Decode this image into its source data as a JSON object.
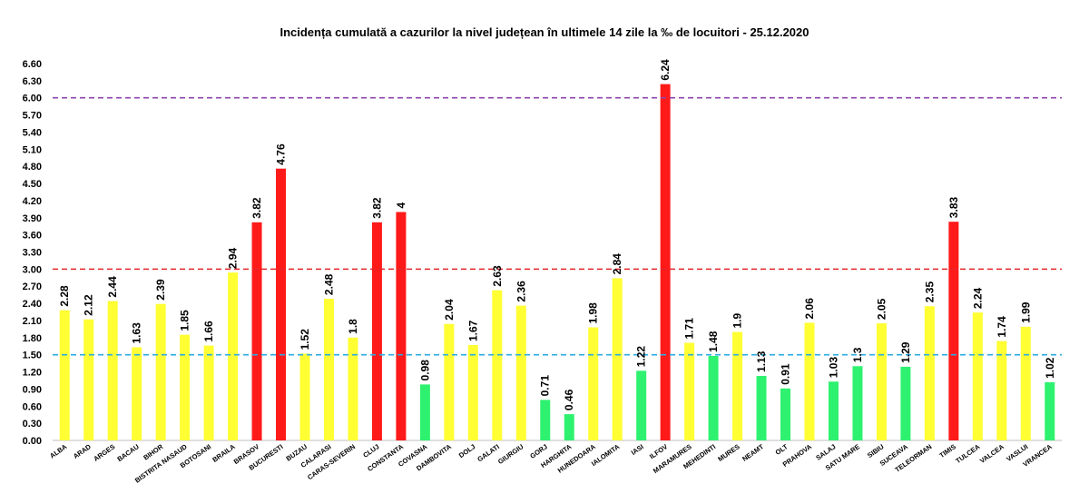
{
  "chart_data": {
    "type": "bar",
    "title": "Incidența cumulată a cazurilor la nivel județean în ultimele 14 zile la ‰ de locuitori - 25.12.2020",
    "xlabel": "",
    "ylabel": "",
    "ylim": [
      0,
      6.6
    ],
    "yticks": [
      "0.00",
      "0.30",
      "0.60",
      "0.90",
      "1.20",
      "1.50",
      "1.80",
      "2.10",
      "2.40",
      "2.70",
      "3.00",
      "3.30",
      "3.60",
      "3.90",
      "4.20",
      "4.50",
      "4.80",
      "5.10",
      "5.40",
      "5.70",
      "6.00",
      "6.30",
      "6.60"
    ],
    "grid": false,
    "legend": "none",
    "categories": [
      "ALBA",
      "ARAD",
      "ARGES",
      "BACAU",
      "BIHOR",
      "BISTRITA NASAUD",
      "BOTOSANI",
      "BRAILA",
      "BRASOV",
      "BUCURESTI",
      "BUZAU",
      "CALARASI",
      "CARAS-SEVERIN",
      "CLUJ",
      "CONSTANTA",
      "COVASNA",
      "DAMBOVITA",
      "DOLJ",
      "GALATI",
      "GIURGIU",
      "GORJ",
      "HARGHITA",
      "HUNEDOARA",
      "IALOMITA",
      "IASI",
      "ILFOV",
      "MARAMURES",
      "MEHEDINTI",
      "MURES",
      "NEAMT",
      "OLT",
      "PRAHOVA",
      "SALAJ",
      "SATU MARE",
      "SIBIU",
      "SUCEAVA",
      "TELEORMAN",
      "TIMIS",
      "TULCEA",
      "VALCEA",
      "VASLUI",
      "VRANCEA"
    ],
    "values": [
      2.28,
      2.12,
      2.44,
      1.63,
      2.39,
      1.85,
      1.66,
      2.94,
      3.82,
      4.76,
      1.52,
      2.48,
      1.8,
      3.82,
      4,
      0.98,
      2.04,
      1.67,
      2.63,
      2.36,
      0.71,
      0.46,
      1.98,
      2.84,
      1.22,
      6.24,
      1.71,
      1.48,
      1.9,
      1.13,
      0.91,
      2.06,
      1.03,
      1.3,
      2.05,
      1.29,
      2.35,
      3.83,
      2.24,
      1.74,
      1.99,
      1.02
    ],
    "value_labels": [
      "2.28",
      "2.12",
      "2.44",
      "1.63",
      "2.39",
      "1.85",
      "1.66",
      "2.94",
      "3.82",
      "4.76",
      "1.52",
      "2.48",
      "1.8",
      "3.82",
      "4",
      "0.98",
      "2.04",
      "1.67",
      "2.63",
      "2.36",
      "0.71",
      "0.46",
      "1.98",
      "2.84",
      "1.22",
      "6.24",
      "1.71",
      "1.48",
      "1.9",
      "1.13",
      "0.91",
      "2.06",
      "1.03",
      "1.3",
      "2.05",
      "1.29",
      "2.35",
      "3.83",
      "2.24",
      "1.74",
      "1.99",
      "1.02"
    ],
    "thresholds": [
      {
        "value": 6.0,
        "color": "#8e44ad"
      },
      {
        "value": 3.0,
        "color": "#e5262a"
      },
      {
        "value": 1.5,
        "color": "#29abe2"
      }
    ],
    "colors": {
      "green": "#2ef26f",
      "yellow": "#ffff33",
      "red": "#ff1a1a"
    }
  }
}
